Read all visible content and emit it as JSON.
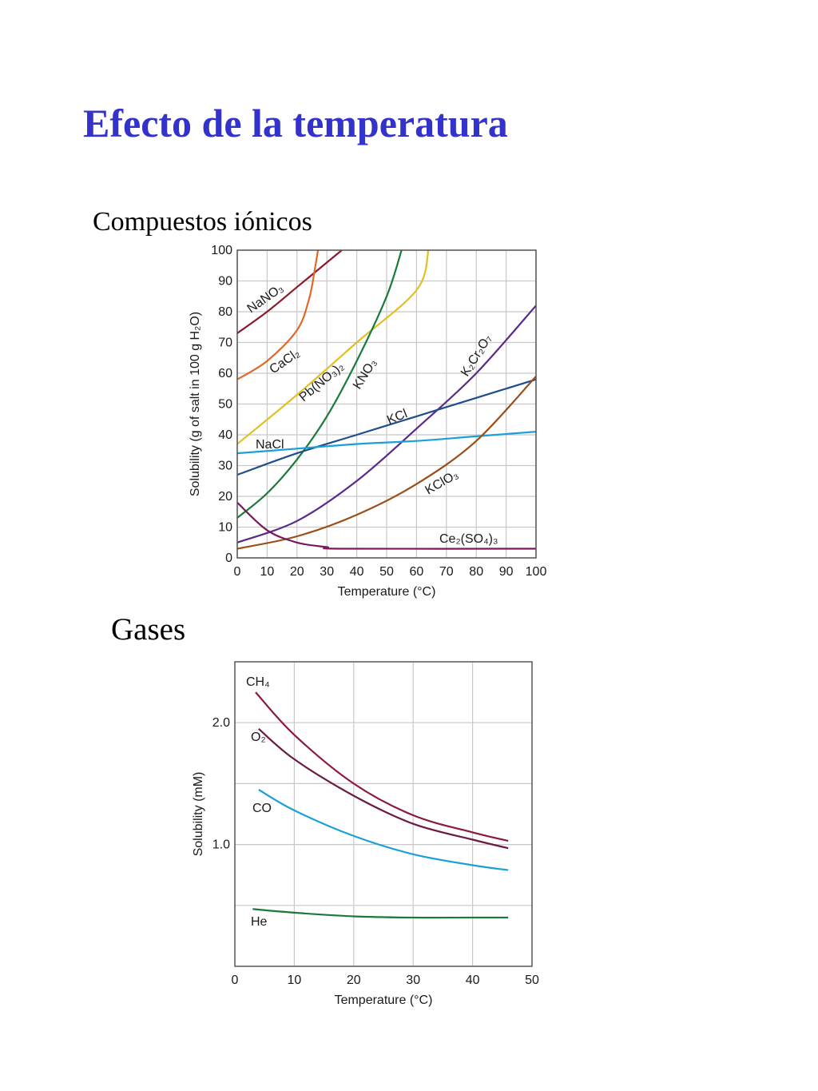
{
  "page": {
    "title": "Efecto de la temperatura",
    "title_color": "#3333cc",
    "section_ionic": "Compuestos iónicos",
    "section_gases": "Gases"
  },
  "chart_data": [
    {
      "type": "line",
      "title": "",
      "xlabel": "Temperature (°C)",
      "ylabel": "Solubility (g of salt in 100 g H₂O)",
      "xlim": [
        0,
        100
      ],
      "ylim": [
        0,
        100
      ],
      "xticks": [
        0,
        10,
        20,
        30,
        40,
        50,
        60,
        70,
        80,
        90,
        100
      ],
      "yticks": [
        0,
        10,
        20,
        30,
        40,
        50,
        60,
        70,
        80,
        90,
        100
      ],
      "grid": true,
      "legend": "none (inline labels)",
      "series": [
        {
          "name": "NaNO₃",
          "color": "#8b1a2b",
          "x": [
            0,
            10,
            20,
            30,
            35
          ],
          "y": [
            73,
            80,
            88,
            96,
            100
          ]
        },
        {
          "name": "CaCl₂",
          "color": "#e0692a",
          "x": [
            0,
            10,
            20,
            24,
            26,
            27
          ],
          "y": [
            58,
            64,
            74,
            84,
            94,
            100
          ]
        },
        {
          "name": "Pb(NO₃)₂",
          "color": "#e3c021",
          "x": [
            0,
            20,
            40,
            60,
            64
          ],
          "y": [
            37,
            53,
            70,
            87,
            100
          ]
        },
        {
          "name": "KNO₃",
          "color": "#1b7a3a",
          "x": [
            0,
            10,
            20,
            30,
            40,
            50,
            55
          ],
          "y": [
            13,
            21,
            32,
            46,
            64,
            85,
            100
          ]
        },
        {
          "name": "K₂Cr₂O₇",
          "color": "#5a2a8a",
          "x": [
            0,
            20,
            40,
            60,
            80,
            100
          ],
          "y": [
            5,
            12,
            25,
            42,
            60,
            82
          ]
        },
        {
          "name": "KCl",
          "color": "#1f4e8c",
          "x": [
            0,
            20,
            40,
            60,
            80,
            100
          ],
          "y": [
            27,
            34,
            40,
            46,
            52,
            58
          ]
        },
        {
          "name": "NaCl",
          "color": "#1aa0d8",
          "x": [
            0,
            20,
            40,
            60,
            80,
            100
          ],
          "y": [
            34,
            35.5,
            37,
            38,
            39.5,
            41
          ]
        },
        {
          "name": "KClO₃",
          "color": "#9a4f1a",
          "x": [
            0,
            20,
            40,
            60,
            80,
            100
          ],
          "y": [
            3,
            7,
            14,
            24,
            38,
            59
          ]
        },
        {
          "name": "Ce₂(SO₄)₃",
          "color": "#7a1a5a",
          "x": [
            0,
            10,
            20,
            30,
            35,
            100
          ],
          "y": [
            18,
            9,
            5,
            3.5,
            3,
            3
          ]
        }
      ]
    },
    {
      "type": "line",
      "title": "",
      "xlabel": "Temperature (°C)",
      "ylabel": "Solubility (mM)",
      "xlim": [
        0,
        50
      ],
      "ylim": [
        0,
        2.5
      ],
      "xticks": [
        0,
        10,
        20,
        30,
        40,
        50
      ],
      "yticks": [
        1.0,
        2.0
      ],
      "grid": true,
      "legend": "none (inline labels)",
      "series": [
        {
          "name": "CH₄",
          "color": "#8b1a3a",
          "x": [
            3.5,
            10,
            20,
            30,
            40,
            46
          ],
          "y": [
            2.25,
            1.9,
            1.5,
            1.24,
            1.1,
            1.03
          ]
        },
        {
          "name": "O₂",
          "color": "#6b1a44",
          "x": [
            4,
            10,
            20,
            30,
            40,
            46
          ],
          "y": [
            1.95,
            1.7,
            1.4,
            1.17,
            1.04,
            0.97
          ]
        },
        {
          "name": "CO",
          "color": "#1aa0d8",
          "x": [
            4,
            10,
            20,
            30,
            40,
            46
          ],
          "y": [
            1.45,
            1.28,
            1.07,
            0.92,
            0.83,
            0.79
          ]
        },
        {
          "name": "He",
          "color": "#1b7a3a",
          "x": [
            3,
            10,
            20,
            30,
            40,
            46
          ],
          "y": [
            0.47,
            0.44,
            0.41,
            0.4,
            0.4,
            0.4
          ]
        }
      ]
    }
  ]
}
